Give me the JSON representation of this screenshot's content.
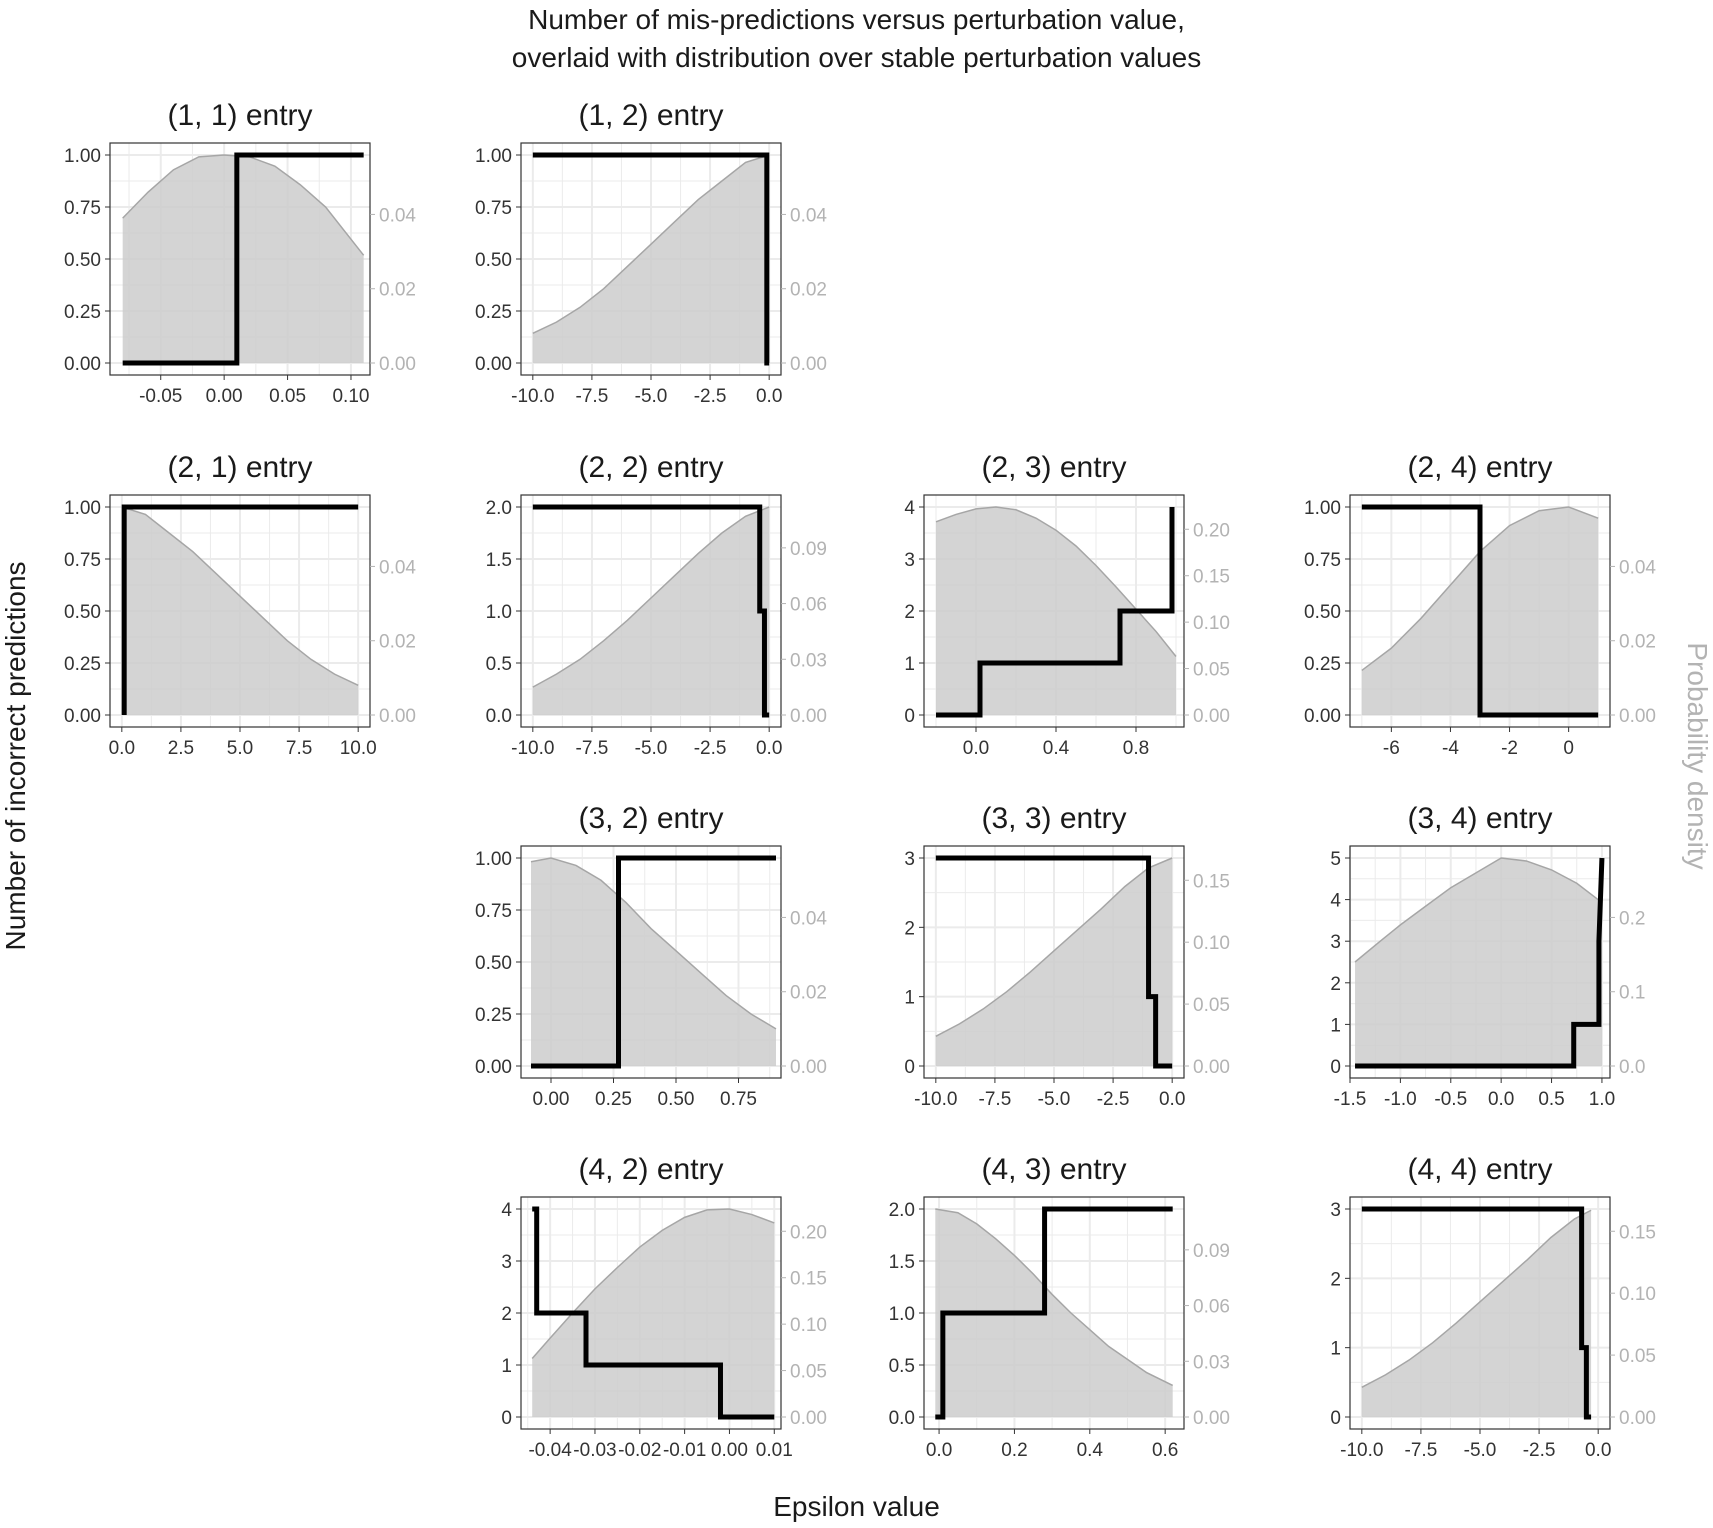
{
  "title_lines": [
    "Number of mis-predictions versus perturbation value,",
    "overlaid with distribution over stable perturbation values"
  ],
  "xlabel": "Epsilon value",
  "ylabel": "Number of incorrect predictions",
  "y2label": "Probability density",
  "colors": {
    "step": "#000000",
    "density_fill": "#cccccc",
    "density_line": "#a6a6a6",
    "grid": "#ebebeb",
    "right_axis": "#b3b3b3"
  },
  "chart_data": [
    {
      "type": "line",
      "title": "(1, 1) entry",
      "row": 0,
      "col": 0,
      "xlim": [
        -0.09,
        0.115
      ],
      "ylim": [
        0,
        1
      ],
      "xticks": [
        -0.05,
        0.0,
        0.05,
        0.1
      ],
      "xtick_labels": [
        "-0.05",
        "0.00",
        "0.05",
        "0.10"
      ],
      "yticks": [
        0,
        0.25,
        0.5,
        0.75,
        1
      ],
      "ytick_labels": [
        "0.00",
        "0.25",
        "0.50",
        "0.75",
        "1.00"
      ],
      "y2max": 0.056,
      "y2ticks": [
        0,
        0.02,
        0.04
      ],
      "y2tick_labels": [
        "0.00",
        "0.02",
        "0.04"
      ],
      "series": [
        {
          "x": [
            -0.08,
            0.01,
            0.01,
            0.11
          ],
          "y": [
            0,
            0,
            1,
            1
          ]
        }
      ],
      "density": {
        "x": [
          -0.08,
          -0.06,
          -0.04,
          -0.02,
          0.0,
          0.02,
          0.04,
          0.06,
          0.08,
          0.11
        ],
        "y": [
          0.039,
          0.046,
          0.052,
          0.0555,
          0.056,
          0.0555,
          0.053,
          0.048,
          0.042,
          0.029
        ]
      }
    },
    {
      "type": "line",
      "title": "(1, 2) entry",
      "row": 0,
      "col": 1,
      "xlim": [
        -10.5,
        0.5
      ],
      "ylim": [
        0,
        1
      ],
      "xticks": [
        -10,
        -7.5,
        -5,
        -2.5,
        0
      ],
      "xtick_labels": [
        "-10.0",
        "-7.5",
        "-5.0",
        "-2.5",
        "0.0"
      ],
      "yticks": [
        0,
        0.25,
        0.5,
        0.75,
        1
      ],
      "ytick_labels": [
        "0.00",
        "0.25",
        "0.50",
        "0.75",
        "1.00"
      ],
      "y2max": 0.056,
      "y2ticks": [
        0,
        0.02,
        0.04
      ],
      "y2tick_labels": [
        "0.00",
        "0.02",
        "0.04"
      ],
      "series": [
        {
          "x": [
            -10,
            -0.1,
            -0.1,
            0
          ],
          "y": [
            1,
            1,
            0,
            0
          ]
        }
      ],
      "density": {
        "x": [
          -10,
          -9,
          -8,
          -7,
          -6,
          -5,
          -4,
          -3,
          -2,
          -1,
          0
        ],
        "y": [
          0.008,
          0.011,
          0.015,
          0.02,
          0.026,
          0.032,
          0.038,
          0.044,
          0.049,
          0.054,
          0.056
        ]
      }
    },
    {
      "type": "line",
      "title": "(2, 1) entry",
      "row": 1,
      "col": 0,
      "xlim": [
        -0.5,
        10.5
      ],
      "ylim": [
        0,
        1
      ],
      "xticks": [
        0,
        2.5,
        5,
        7.5,
        10
      ],
      "xtick_labels": [
        "0.0",
        "2.5",
        "5.0",
        "7.5",
        "10.0"
      ],
      "yticks": [
        0,
        0.25,
        0.5,
        0.75,
        1
      ],
      "ytick_labels": [
        "0.00",
        "0.25",
        "0.50",
        "0.75",
        "1.00"
      ],
      "y2max": 0.056,
      "y2ticks": [
        0,
        0.02,
        0.04
      ],
      "y2tick_labels": [
        "0.00",
        "0.02",
        "0.04"
      ],
      "series": [
        {
          "x": [
            0.1,
            0.1,
            10
          ],
          "y": [
            0,
            1,
            1
          ]
        }
      ],
      "density": {
        "x": [
          0,
          1,
          2,
          3,
          4,
          5,
          6,
          7,
          8,
          9,
          10
        ],
        "y": [
          0.056,
          0.054,
          0.049,
          0.044,
          0.038,
          0.032,
          0.026,
          0.02,
          0.015,
          0.011,
          0.008
        ]
      }
    },
    {
      "type": "line",
      "title": "(2, 2) entry",
      "row": 1,
      "col": 1,
      "xlim": [
        -10.5,
        0.5
      ],
      "ylim": [
        0,
        2
      ],
      "xticks": [
        -10,
        -7.5,
        -5,
        -2.5,
        0
      ],
      "xtick_labels": [
        "-10.0",
        "-7.5",
        "-5.0",
        "-2.5",
        "0.0"
      ],
      "yticks": [
        0,
        0.5,
        1,
        1.5,
        2
      ],
      "ytick_labels": [
        "0.0",
        "0.5",
        "1.0",
        "1.5",
        "2.0"
      ],
      "y2max": 0.112,
      "y2ticks": [
        0,
        0.03,
        0.06,
        0.09
      ],
      "y2tick_labels": [
        "0.00",
        "0.03",
        "0.06",
        "0.09"
      ],
      "series": [
        {
          "x": [
            -10,
            -0.4,
            -0.4,
            -0.2,
            -0.2,
            0
          ],
          "y": [
            2,
            2,
            1,
            1,
            0,
            0
          ]
        }
      ],
      "density": {
        "x": [
          -10,
          -9,
          -8,
          -7,
          -6,
          -5,
          -4,
          -3,
          -2,
          -1,
          0
        ],
        "y": [
          0.015,
          0.022,
          0.03,
          0.04,
          0.051,
          0.063,
          0.075,
          0.087,
          0.098,
          0.107,
          0.112
        ]
      }
    },
    {
      "type": "line",
      "title": "(2, 3) entry",
      "row": 1,
      "col": 2,
      "xlim": [
        -0.26,
        1.04
      ],
      "ylim": [
        0,
        4
      ],
      "xticks": [
        0,
        0.4,
        0.8
      ],
      "xtick_labels": [
        "0.0",
        "0.4",
        "0.8"
      ],
      "yticks": [
        0,
        1,
        2,
        3,
        4
      ],
      "ytick_labels": [
        "0",
        "1",
        "2",
        "3",
        "4"
      ],
      "y2max": 0.224,
      "y2ticks": [
        0,
        0.05,
        0.1,
        0.15,
        0.2
      ],
      "y2tick_labels": [
        "0.00",
        "0.05",
        "0.10",
        "0.15",
        "0.20"
      ],
      "series": [
        {
          "x": [
            -0.2,
            0.02,
            0.02,
            0.72,
            0.72,
            0.98,
            0.98
          ],
          "y": [
            0,
            0,
            1,
            1,
            2,
            2,
            4
          ]
        }
      ],
      "density": {
        "x": [
          -0.2,
          -0.1,
          0.0,
          0.1,
          0.2,
          0.3,
          0.4,
          0.5,
          0.6,
          0.7,
          0.8,
          0.9,
          1.0
        ],
        "y": [
          0.208,
          0.216,
          0.222,
          0.224,
          0.221,
          0.212,
          0.199,
          0.182,
          0.161,
          0.138,
          0.114,
          0.09,
          0.063
        ]
      }
    },
    {
      "type": "line",
      "title": "(2, 4) entry",
      "row": 1,
      "col": 3,
      "xlim": [
        -7.4,
        1.4
      ],
      "ylim": [
        0,
        1
      ],
      "xticks": [
        -6,
        -4,
        -2,
        0
      ],
      "xtick_labels": [
        "-6",
        "-4",
        "-2",
        "0"
      ],
      "yticks": [
        0,
        0.25,
        0.5,
        0.75,
        1
      ],
      "ytick_labels": [
        "0.00",
        "0.25",
        "0.50",
        "0.75",
        "1.00"
      ],
      "y2max": 0.056,
      "y2ticks": [
        0,
        0.02,
        0.04
      ],
      "y2tick_labels": [
        "0.00",
        "0.02",
        "0.04"
      ],
      "series": [
        {
          "x": [
            -7,
            -3,
            -3,
            1
          ],
          "y": [
            1,
            1,
            0,
            0
          ]
        }
      ],
      "density": {
        "x": [
          -7,
          -6,
          -5,
          -4,
          -3,
          -2,
          -1,
          0,
          1
        ],
        "y": [
          0.012,
          0.018,
          0.026,
          0.035,
          0.044,
          0.051,
          0.055,
          0.056,
          0.053
        ]
      }
    },
    {
      "type": "line",
      "title": "(3, 2) entry",
      "row": 2,
      "col": 1,
      "xlim": [
        -0.12,
        0.92
      ],
      "ylim": [
        0,
        1
      ],
      "xticks": [
        0,
        0.25,
        0.5,
        0.75
      ],
      "xtick_labels": [
        "0.00",
        "0.25",
        "0.50",
        "0.75"
      ],
      "yticks": [
        0,
        0.25,
        0.5,
        0.75,
        1
      ],
      "ytick_labels": [
        "0.00",
        "0.25",
        "0.50",
        "0.75",
        "1.00"
      ],
      "y2max": 0.056,
      "y2ticks": [
        0,
        0.02,
        0.04
      ],
      "y2tick_labels": [
        "0.00",
        "0.02",
        "0.04"
      ],
      "series": [
        {
          "x": [
            -0.08,
            0.27,
            0.27,
            0.9
          ],
          "y": [
            0,
            0,
            1,
            1
          ]
        }
      ],
      "density": {
        "x": [
          -0.08,
          0.0,
          0.1,
          0.2,
          0.3,
          0.4,
          0.5,
          0.6,
          0.7,
          0.8,
          0.9
        ],
        "y": [
          0.055,
          0.056,
          0.054,
          0.05,
          0.044,
          0.037,
          0.031,
          0.025,
          0.019,
          0.014,
          0.01
        ]
      }
    },
    {
      "type": "line",
      "title": "(3, 3) entry",
      "row": 2,
      "col": 2,
      "xlim": [
        -10.5,
        0.5
      ],
      "ylim": [
        0,
        3
      ],
      "xticks": [
        -10,
        -7.5,
        -5,
        -2.5,
        0
      ],
      "xtick_labels": [
        "-10.0",
        "-7.5",
        "-5.0",
        "-2.5",
        "0.0"
      ],
      "yticks": [
        0,
        1,
        2,
        3
      ],
      "ytick_labels": [
        "0",
        "1",
        "2",
        "3"
      ],
      "y2max": 0.168,
      "y2ticks": [
        0,
        0.05,
        0.1,
        0.15
      ],
      "y2tick_labels": [
        "0.00",
        "0.05",
        "0.10",
        "0.15"
      ],
      "series": [
        {
          "x": [
            -10,
            -1.0,
            -1.0,
            -0.7,
            -0.7,
            0
          ],
          "y": [
            3,
            3,
            1,
            1,
            0,
            0
          ]
        }
      ],
      "density": {
        "x": [
          -10,
          -9,
          -8,
          -7,
          -6,
          -5,
          -4,
          -3,
          -2,
          -1,
          0
        ],
        "y": [
          0.024,
          0.034,
          0.046,
          0.06,
          0.076,
          0.093,
          0.11,
          0.127,
          0.145,
          0.16,
          0.168
        ]
      }
    },
    {
      "type": "line",
      "title": "(3, 4) entry",
      "row": 2,
      "col": 3,
      "xlim": [
        -1.5,
        1.08
      ],
      "ylim": [
        0,
        5
      ],
      "xticks": [
        -1.5,
        -1,
        -0.5,
        0,
        0.5,
        1
      ],
      "xtick_labels": [
        "-1.5",
        "-1.0",
        "-0.5",
        "0.0",
        "0.5",
        "1.0"
      ],
      "yticks": [
        0,
        1,
        2,
        3,
        4,
        5
      ],
      "ytick_labels": [
        "0",
        "1",
        "2",
        "3",
        "4",
        "5"
      ],
      "y2max": 0.28,
      "y2ticks": [
        0,
        0.1,
        0.2
      ],
      "y2tick_labels": [
        "0.0",
        "0.1",
        "0.2"
      ],
      "series": [
        {
          "x": [
            -1.45,
            0.72,
            0.72,
            0.97,
            0.97,
            1.0
          ],
          "y": [
            0,
            0,
            1,
            1,
            3,
            5
          ]
        }
      ],
      "density": {
        "x": [
          -1.45,
          -1.2,
          -1.0,
          -0.75,
          -0.5,
          -0.25,
          0.0,
          0.25,
          0.5,
          0.75,
          1.0
        ],
        "y": [
          0.14,
          0.168,
          0.19,
          0.215,
          0.24,
          0.26,
          0.28,
          0.276,
          0.264,
          0.246,
          0.22
        ]
      }
    },
    {
      "type": "line",
      "title": "(4, 2) entry",
      "row": 3,
      "col": 1,
      "xlim": [
        -0.0465,
        0.0115
      ],
      "ylim": [
        0,
        4
      ],
      "xticks": [
        -0.04,
        -0.03,
        -0.02,
        -0.01,
        0.0,
        0.01
      ],
      "xtick_labels": [
        "-0.04",
        "-0.03",
        "-0.02",
        "-0.01",
        "0.00",
        "0.01"
      ],
      "yticks": [
        0,
        1,
        2,
        3,
        4
      ],
      "ytick_labels": [
        "0",
        "1",
        "2",
        "3",
        "4"
      ],
      "y2max": 0.224,
      "y2ticks": [
        0,
        0.05,
        0.1,
        0.15,
        0.2
      ],
      "y2tick_labels": [
        "0.00",
        "0.05",
        "0.10",
        "0.15",
        "0.20"
      ],
      "series": [
        {
          "x": [
            -0.044,
            -0.043,
            -0.043,
            -0.032,
            -0.032,
            -0.002,
            -0.002,
            0.01
          ],
          "y": [
            4,
            4,
            2,
            2,
            1,
            1,
            0,
            0
          ]
        }
      ],
      "density": {
        "x": [
          -0.044,
          -0.04,
          -0.035,
          -0.03,
          -0.025,
          -0.02,
          -0.015,
          -0.01,
          -0.005,
          0.0,
          0.005,
          0.01
        ],
        "y": [
          0.063,
          0.085,
          0.112,
          0.138,
          0.161,
          0.183,
          0.201,
          0.215,
          0.223,
          0.224,
          0.218,
          0.209
        ]
      }
    },
    {
      "type": "line",
      "title": "(4, 3) entry",
      "row": 3,
      "col": 2,
      "xlim": [
        -0.04,
        0.65
      ],
      "ylim": [
        0,
        2
      ],
      "xticks": [
        0,
        0.2,
        0.4,
        0.6
      ],
      "xtick_labels": [
        "0.0",
        "0.2",
        "0.4",
        "0.6"
      ],
      "yticks": [
        0,
        0.5,
        1,
        1.5,
        2
      ],
      "ytick_labels": [
        "0.0",
        "0.5",
        "1.0",
        "1.5",
        "2.0"
      ],
      "y2max": 0.112,
      "y2ticks": [
        0,
        0.03,
        0.06,
        0.09
      ],
      "y2tick_labels": [
        "0.00",
        "0.03",
        "0.06",
        "0.09"
      ],
      "series": [
        {
          "x": [
            -0.01,
            0.01,
            0.01,
            0.28,
            0.28,
            0.62
          ],
          "y": [
            0,
            0,
            1,
            1,
            2,
            2
          ]
        }
      ],
      "density": {
        "x": [
          -0.01,
          0.05,
          0.1,
          0.15,
          0.2,
          0.25,
          0.3,
          0.35,
          0.4,
          0.45,
          0.5,
          0.55,
          0.62
        ],
        "y": [
          0.112,
          0.11,
          0.104,
          0.096,
          0.087,
          0.077,
          0.066,
          0.056,
          0.047,
          0.038,
          0.031,
          0.024,
          0.017
        ]
      }
    },
    {
      "type": "line",
      "title": "(4, 4) entry",
      "row": 3,
      "col": 3,
      "xlim": [
        -10.5,
        0.5
      ],
      "ylim": [
        0,
        3
      ],
      "xticks": [
        -10,
        -7.5,
        -5,
        -2.5,
        0
      ],
      "xtick_labels": [
        "-10.0",
        "-7.5",
        "-5.0",
        "-2.5",
        "0.0"
      ],
      "yticks": [
        0,
        1,
        2,
        3
      ],
      "ytick_labels": [
        "0",
        "1",
        "2",
        "3"
      ],
      "y2max": 0.168,
      "y2ticks": [
        0,
        0.05,
        0.1,
        0.15
      ],
      "y2tick_labels": [
        "0.00",
        "0.05",
        "0.10",
        "0.15"
      ],
      "series": [
        {
          "x": [
            -10,
            -0.7,
            -0.7,
            -0.5,
            -0.5,
            -0.3
          ],
          "y": [
            3,
            3,
            1,
            1,
            0,
            0
          ]
        }
      ],
      "density": {
        "x": [
          -10,
          -9,
          -8,
          -7,
          -6,
          -5,
          -4,
          -3,
          -2,
          -1,
          -0.3
        ],
        "y": [
          0.024,
          0.034,
          0.046,
          0.06,
          0.076,
          0.093,
          0.11,
          0.127,
          0.145,
          0.16,
          0.167
        ]
      }
    }
  ]
}
